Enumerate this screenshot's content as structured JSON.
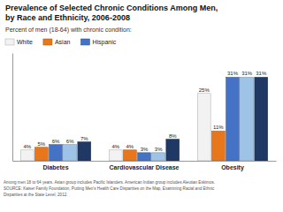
{
  "chart_data": {
    "type": "bar",
    "title": [
      "Prevalence of Selected Chronic Conditions Among Men,",
      "by Race and Ethnicity, 2006-2008"
    ],
    "subtitle": "Percent of men (18-64) with chronic condition:",
    "categories": [
      "Diabetes",
      "Cardiovascular Disease",
      "Obesity"
    ],
    "series": [
      {
        "name": "White",
        "color": "#f2f2f2",
        "values": [
          4,
          4,
          25
        ],
        "value_labels": [
          "4%",
          "4%",
          "25%"
        ]
      },
      {
        "name": "Asian",
        "color": "#e8761a",
        "values": [
          5,
          4,
          11
        ],
        "value_labels": [
          "5%",
          "4%",
          "11%"
        ]
      },
      {
        "name": "Hispanic",
        "color": "#4472c4",
        "values": [
          6,
          3,
          31
        ],
        "value_labels": [
          "6%",
          "3%",
          "31%"
        ]
      },
      {
        "color": "#9dc3e6",
        "values": [
          6,
          3,
          31
        ],
        "value_labels": [
          "6%",
          "3%",
          "31%"
        ]
      },
      {
        "color": "#1f3864",
        "values": [
          7,
          8,
          31
        ],
        "value_labels": [
          "7%",
          "8%",
          "31%"
        ]
      }
    ],
    "ylim": [
      0,
      40
    ],
    "tick_labels": "x",
    "data_labels": true,
    "grid": false,
    "legend": "upper left",
    "annotations": [
      "Among men 18 to 64 years. Asian group includes Pacific Islanders. American Indian group includes Aleutian Eskimos.\nSOURCE:  Kaiser Family Foundation, Putting Men's Health Care Disparities on the Map, Examining Racial and Ethnic\nDisparities at the State Level, 2012."
    ]
  }
}
